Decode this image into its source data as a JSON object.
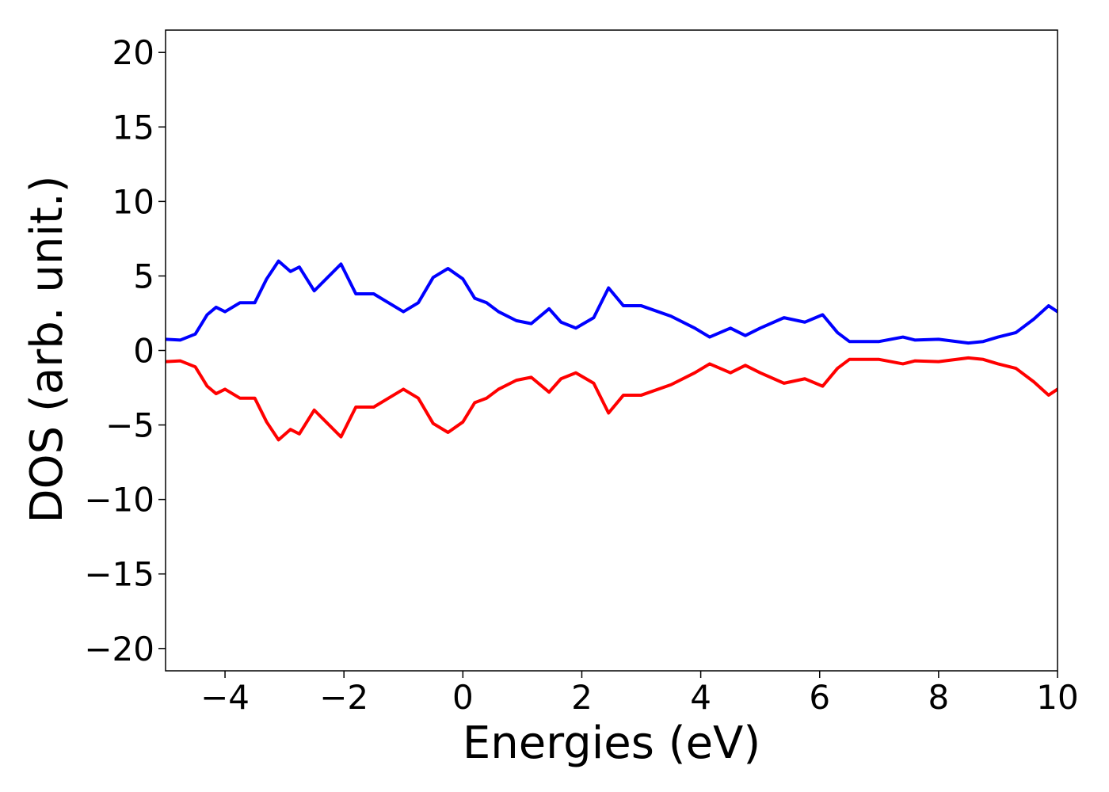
{
  "chart_data": {
    "type": "line",
    "xlabel": "Energies (eV)",
    "ylabel": "DOS (arb. unit.)",
    "xlim": [
      -5,
      10
    ],
    "ylim": [
      -21.5,
      21.5
    ],
    "xticks": [
      {
        "value": -4,
        "label": "−4"
      },
      {
        "value": -2,
        "label": "−2"
      },
      0,
      2,
      4,
      6,
      8,
      10
    ],
    "yticks": [
      {
        "value": -20,
        "label": "−20"
      },
      {
        "value": -15,
        "label": "−15"
      },
      {
        "value": -10,
        "label": "−10"
      },
      {
        "value": -5,
        "label": "−5"
      },
      0,
      5,
      10,
      15,
      20
    ],
    "x": [
      -5,
      -4.75,
      -4.5,
      -4.3,
      -4.15,
      -4.0,
      -3.75,
      -3.5,
      -3.3,
      -3.1,
      -2.9,
      -2.75,
      -2.5,
      -2.3,
      -2.05,
      -1.8,
      -1.5,
      -1.25,
      -1.0,
      -0.75,
      -0.5,
      -0.25,
      0.0,
      0.2,
      0.4,
      0.6,
      0.9,
      1.15,
      1.45,
      1.65,
      1.9,
      2.2,
      2.45,
      2.7,
      3.0,
      3.5,
      3.9,
      4.15,
      4.5,
      4.75,
      5.0,
      5.4,
      5.75,
      6.05,
      6.3,
      6.5,
      7.0,
      7.4,
      7.6,
      8.0,
      8.5,
      8.75,
      9.0,
      9.3,
      9.6,
      9.85,
      10.0
    ],
    "series": [
      {
        "color": "#0000ff",
        "values": [
          0.75,
          0.7,
          1.1,
          2.4,
          2.9,
          2.6,
          3.2,
          3.2,
          4.8,
          6.0,
          5.3,
          5.6,
          4.0,
          4.8,
          5.8,
          3.8,
          3.8,
          3.2,
          2.6,
          3.2,
          4.9,
          5.5,
          4.8,
          3.5,
          3.2,
          2.6,
          2.0,
          1.8,
          2.8,
          1.9,
          1.5,
          2.2,
          4.2,
          3.0,
          3.0,
          2.3,
          1.5,
          0.9,
          1.5,
          1.0,
          1.5,
          2.2,
          1.9,
          2.4,
          1.2,
          0.6,
          0.6,
          0.9,
          0.7,
          0.75,
          0.5,
          0.6,
          0.9,
          1.2,
          2.1,
          3.0,
          2.6
        ]
      },
      {
        "color": "#ff0000",
        "values": [
          -0.75,
          -0.7,
          -1.1,
          -2.4,
          -2.9,
          -2.6,
          -3.2,
          -3.2,
          -4.8,
          -6.0,
          -5.3,
          -5.6,
          -4.0,
          -4.8,
          -5.8,
          -3.8,
          -3.8,
          -3.2,
          -2.6,
          -3.2,
          -4.9,
          -5.5,
          -4.8,
          -3.5,
          -3.2,
          -2.6,
          -2.0,
          -1.8,
          -2.8,
          -1.9,
          -1.5,
          -2.2,
          -4.2,
          -3.0,
          -3.0,
          -2.3,
          -1.5,
          -0.9,
          -1.5,
          -1.0,
          -1.5,
          -2.2,
          -1.9,
          -2.4,
          -1.2,
          -0.6,
          -0.6,
          -0.9,
          -0.7,
          -0.75,
          -0.5,
          -0.6,
          -0.9,
          -1.2,
          -2.1,
          -3.0,
          -2.6
        ]
      }
    ]
  }
}
